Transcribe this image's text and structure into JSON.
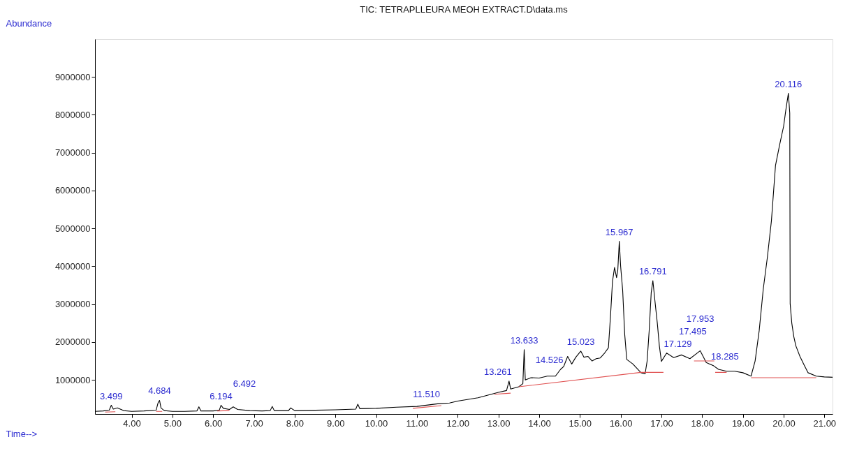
{
  "chart_data": {
    "type": "line",
    "title": "TIC: TETRAPLLEURA MEOH EXTRACT.D\\data.ms",
    "xlabel": "Time-->",
    "ylabel": "Abundance",
    "xlim": [
      3.1,
      21.2
    ],
    "ylim": [
      100000,
      10000000
    ],
    "xticks": [
      {
        "value": 4,
        "label": "4.00"
      },
      {
        "value": 5,
        "label": "5.00"
      },
      {
        "value": 6,
        "label": "6.00"
      },
      {
        "value": 7,
        "label": "7.00"
      },
      {
        "value": 8,
        "label": "8.00"
      },
      {
        "value": 9,
        "label": "9.00"
      },
      {
        "value": 10,
        "label": "10.00"
      },
      {
        "value": 11,
        "label": "11.00"
      },
      {
        "value": 12,
        "label": "12.00"
      },
      {
        "value": 13,
        "label": "13.00"
      },
      {
        "value": 14,
        "label": "14.00"
      },
      {
        "value": 15,
        "label": "15.00"
      },
      {
        "value": 16,
        "label": "16.00"
      },
      {
        "value": 17,
        "label": "17.00"
      },
      {
        "value": 18,
        "label": "18.00"
      },
      {
        "value": 19,
        "label": "19.00"
      },
      {
        "value": 20,
        "label": "20.00"
      },
      {
        "value": 21,
        "label": "21.00"
      }
    ],
    "yticks": [
      1000000,
      2000000,
      3000000,
      4000000,
      5000000,
      6000000,
      7000000,
      8000000,
      9000000
    ],
    "grid": false,
    "legend": false,
    "marker": "none",
    "line_style": "solid",
    "series": [
      {
        "color": "#000000",
        "x": [
          3.1,
          3.3,
          3.45,
          3.5,
          3.55,
          3.65,
          3.8,
          4.0,
          4.3,
          4.6,
          4.65,
          4.684,
          4.72,
          4.8,
          5.0,
          5.3,
          5.6,
          5.65,
          5.7,
          6.0,
          6.15,
          6.194,
          6.25,
          6.4,
          6.492,
          6.6,
          6.9,
          7.2,
          7.4,
          7.45,
          7.5,
          7.85,
          7.9,
          8.0,
          8.5,
          9.0,
          9.5,
          9.55,
          9.6,
          10.0,
          10.5,
          11.0,
          11.51,
          11.8,
          12.0,
          12.5,
          13.0,
          13.2,
          13.261,
          13.3,
          13.5,
          13.6,
          13.633,
          13.66,
          13.8,
          14.0,
          14.2,
          14.4,
          14.526,
          14.6,
          14.7,
          14.8,
          14.9,
          15.023,
          15.1,
          15.2,
          15.3,
          15.4,
          15.5,
          15.6,
          15.7,
          15.75,
          15.8,
          15.85,
          15.9,
          15.93,
          15.967,
          16.0,
          16.05,
          16.1,
          16.15,
          16.3,
          16.5,
          16.6,
          16.65,
          16.7,
          16.75,
          16.791,
          16.85,
          16.9,
          16.95,
          17.0,
          17.129,
          17.3,
          17.495,
          17.7,
          17.953,
          18.1,
          18.285,
          18.4,
          18.6,
          18.8,
          19.0,
          19.2,
          19.3,
          19.4,
          19.5,
          19.6,
          19.7,
          19.8,
          19.9,
          20.0,
          20.05,
          20.116,
          20.15,
          20.16,
          20.2,
          20.25,
          20.3,
          20.4,
          20.5,
          20.6,
          20.8,
          21.0,
          21.2
        ],
        "values": [
          170000,
          180000,
          200000,
          330000,
          230000,
          260000,
          190000,
          170000,
          180000,
          200000,
          400000,
          460000,
          260000,
          190000,
          170000,
          170000,
          180000,
          290000,
          180000,
          180000,
          200000,
          330000,
          250000,
          220000,
          290000,
          220000,
          190000,
          180000,
          190000,
          300000,
          190000,
          190000,
          260000,
          190000,
          200000,
          210000,
          230000,
          360000,
          240000,
          250000,
          280000,
          300000,
          370000,
          390000,
          440000,
          530000,
          670000,
          720000,
          970000,
          760000,
          820000,
          900000,
          1800000,
          1000000,
          1060000,
          1050000,
          1100000,
          1100000,
          1280000,
          1350000,
          1620000,
          1420000,
          1600000,
          1760000,
          1600000,
          1620000,
          1500000,
          1560000,
          1580000,
          1700000,
          1850000,
          2670000,
          3600000,
          3970000,
          3700000,
          3900000,
          4660000,
          4000000,
          3360000,
          2200000,
          1540000,
          1420000,
          1190000,
          1160000,
          1500000,
          2300000,
          3300000,
          3620000,
          3000000,
          2500000,
          1900000,
          1490000,
          1710000,
          1590000,
          1660000,
          1560000,
          1770000,
          1460000,
          1370000,
          1280000,
          1230000,
          1230000,
          1190000,
          1100000,
          1500000,
          2300000,
          3400000,
          4230000,
          5200000,
          6660000,
          7200000,
          7700000,
          8100000,
          8570000,
          8050000,
          3010000,
          2500000,
          2140000,
          1900000,
          1620000,
          1400000,
          1190000,
          1100000,
          1080000,
          1070000
        ]
      },
      {
        "color": "#e05050",
        "x": [
          3.35,
          3.6,
          3.62,
          4.6,
          4.75,
          4.76,
          6.1,
          6.4,
          6.41,
          10.9,
          11.6,
          11.61,
          12.9,
          13.3,
          13.31,
          13.5,
          16.5,
          17.05,
          17.06,
          17.8,
          18.3,
          18.31,
          18.32,
          18.6,
          18.61,
          19.2,
          20.8
        ],
        "values": [
          150000,
          160000,
          null,
          170000,
          170000,
          null,
          180000,
          190000,
          null,
          250000,
          320000,
          null,
          620000,
          650000,
          null,
          820000,
          1200000,
          1200000,
          null,
          1500000,
          1500000,
          null,
          1200000,
          1200000,
          null,
          1060000,
          1060000
        ]
      }
    ],
    "annotations": [
      {
        "text": "3.499",
        "x": 3.499,
        "y": 330000
      },
      {
        "text": "4.684",
        "x": 4.684,
        "y": 460000
      },
      {
        "text": "6.194",
        "x": 6.194,
        "y": 330000
      },
      {
        "text": "6.492",
        "x": 6.492,
        "y": 290000
      },
      {
        "text": "11.510",
        "x": 11.51,
        "y": 370000
      },
      {
        "text": "13.261",
        "x": 13.261,
        "y": 970000
      },
      {
        "text": "13.633",
        "x": 13.633,
        "y": 1800000
      },
      {
        "text": "14.526",
        "x": 14.526,
        "y": 1280000
      },
      {
        "text": "15.023",
        "x": 15.023,
        "y": 1760000
      },
      {
        "text": "15.967",
        "x": 15.967,
        "y": 4660000
      },
      {
        "text": "16.791",
        "x": 16.791,
        "y": 3620000
      },
      {
        "text": "17.129",
        "x": 17.129,
        "y": 1710000
      },
      {
        "text": "17.495",
        "x": 17.495,
        "y": 1660000
      },
      {
        "text": "17.953",
        "x": 17.953,
        "y": 1770000
      },
      {
        "text": "18.285",
        "x": 18.285,
        "y": 1370000
      },
      {
        "text": "20.116",
        "x": 20.116,
        "y": 8570000
      }
    ]
  }
}
